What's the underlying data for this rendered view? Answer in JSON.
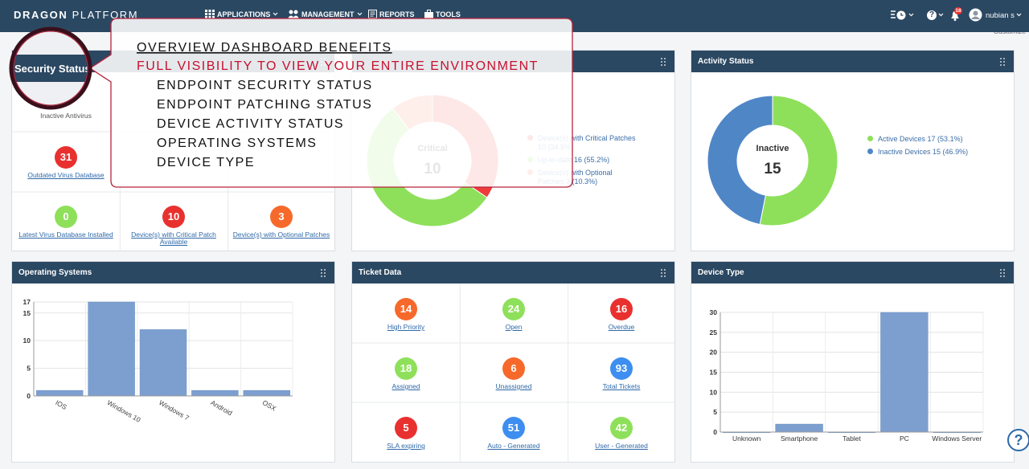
{
  "nav": {
    "brand_bold": "DRAGON",
    "brand_light": "PLATFORM",
    "menu": [
      "APPLICATIONS",
      "MANAGEMENT",
      "REPORTS",
      "TOOLS"
    ],
    "help": "?",
    "notifications": "18",
    "user": "nubian s"
  },
  "customize": "Customize",
  "security_status": {
    "title": "Security Status",
    "items": [
      {
        "label": "Inactive Antivirus"
      },
      {
        "value": 31,
        "label": "Outdated Virus Database",
        "color": "#e8312f"
      },
      {
        "value": 0,
        "label": "Latest Virus Database Installed",
        "color": "#8ee05a"
      },
      {
        "value": 10,
        "label": "Device(s) with Critical Patch Available",
        "color": "#e8312f"
      },
      {
        "value": 3,
        "label": "Device(s) with Optional Patches",
        "color": "#f7692b"
      }
    ]
  },
  "tickets": {
    "title": "Ticket Data",
    "items": [
      {
        "value": 14,
        "label": "High Priority",
        "color": "#f7692b"
      },
      {
        "value": 24,
        "label": "Open",
        "color": "#8ee05a"
      },
      {
        "value": 16,
        "label": "Overdue",
        "color": "#e8312f"
      },
      {
        "value": 18,
        "label": "Assigned",
        "color": "#8ee05a"
      },
      {
        "value": 6,
        "label": "Unassigned",
        "color": "#f7692b"
      },
      {
        "value": 93,
        "label": "Total Tickets",
        "color": "#3d8ef0"
      },
      {
        "value": 5,
        "label": "SLA expiring",
        "color": "#e8312f"
      },
      {
        "value": 51,
        "label": "Auto - Generated",
        "color": "#3d8ef0"
      },
      {
        "value": 42,
        "label": "User - Generated",
        "color": "#8ee05a"
      }
    ]
  },
  "chart_data": [
    {
      "type": "pie",
      "center_label": "Critical",
      "categories": [
        "Device(s) with Critical Patches",
        "Up-to-date",
        "Device(s) with Optional Patches"
      ],
      "values": [
        10,
        16,
        3
      ],
      "value_labels": [
        "10 (34.5%)",
        "16 (55.2%)",
        "3 (10.3%)"
      ],
      "colors": [
        "#ee3b3b",
        "#8ee05a",
        "#f77a5a"
      ]
    },
    {
      "type": "pie",
      "title": "Activity Status",
      "center_label": "Inactive",
      "categories": [
        "Active Devices",
        "Inactive Devices"
      ],
      "values": [
        17,
        15
      ],
      "value_labels": [
        "17 (53.1%)",
        "15 (46.9%)"
      ],
      "colors": [
        "#8ee05a",
        "#4f86c6"
      ]
    },
    {
      "type": "bar",
      "title": "Operating Systems",
      "categories": [
        "IOS",
        "Windows 10",
        "Windows 7",
        "Android",
        "OSX"
      ],
      "values": [
        1,
        17,
        12,
        1,
        1
      ],
      "color": "#7c9fd0",
      "ylim": [
        0,
        17
      ],
      "yticks": [
        0,
        5,
        10,
        15,
        17
      ],
      "grid": true
    },
    {
      "type": "bar",
      "title": "Device Type",
      "categories": [
        "Unknown",
        "Smartphone",
        "Tablet",
        "PC",
        "Windows Server"
      ],
      "values": [
        0,
        2,
        0,
        30,
        0
      ],
      "color": "#7c9fd0",
      "ylim": [
        0,
        30
      ],
      "yticks": [
        0,
        5,
        10,
        15,
        20,
        25,
        30
      ],
      "grid": true
    }
  ],
  "callout": {
    "title": "OVERVIEW DASHBOARD BENEFITS",
    "subtitle": "FULL VISIBILITY TO VIEW YOUR ENTIRE ENVIRONMENT",
    "items": [
      "ENDPOINT SECURITY STATUS",
      "ENDPOINT PATCHING STATUS",
      "DEVICE ACTIVITY STATUS",
      "OPERATING SYSTEMS",
      "DEVICE TYPE"
    ]
  },
  "help_button": "?"
}
